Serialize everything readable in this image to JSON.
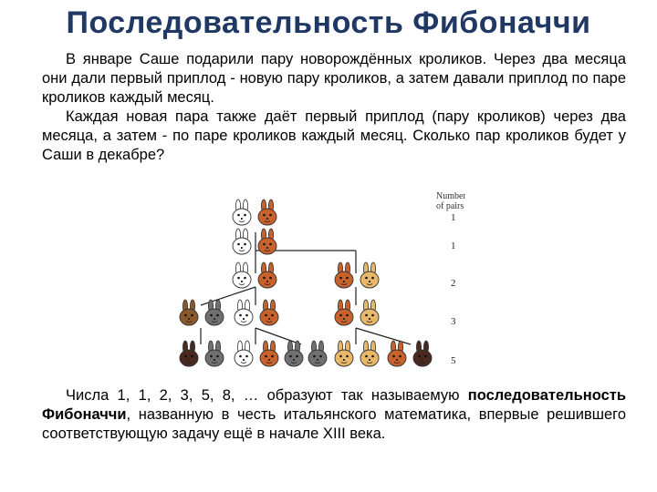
{
  "title": "Последовательность Фибоначчи",
  "paragraph1": "В январе Саше подарили пару новорождённых кроликов. Через два месяца они дали первый приплод - новую пару кроликов, а затем давали приплод по паре кроликов каждый месяц.",
  "paragraph2": "Каждая новая пара также даёт первый приплод (пару кроликов) через два месяца, а затем - по паре кроликов каждый месяц. Сколько пар кроликов будет у Саши в декабре?",
  "paragraph3_start": "Числа 1, 1, 2, 3, 5, 8, … образуют так называемую ",
  "paragraph3_bold": "последовательность Фибоначчи",
  "paragraph3_end": ", названную в честь итальянского математика, впервые решившего соответствующую задачу ещё в начале XIII века.",
  "diagram": {
    "header_line1": "Number",
    "header_line2": "of pairs",
    "counts": [
      "1",
      "1",
      "2",
      "3",
      "5"
    ]
  },
  "colors": {
    "title": "#1f3864",
    "rabbit_white": "#ffffff",
    "rabbit_orange": "#c8622a",
    "rabbit_brown": "#8b5a2b",
    "rabbit_tan": "#e8b86a",
    "rabbit_gray": "#707070",
    "rabbit_dark": "#4a2a1e"
  }
}
